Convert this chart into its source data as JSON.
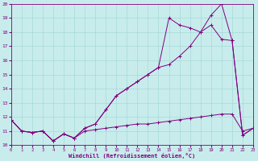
{
  "xlabel": "Windchill (Refroidissement éolien,°C)",
  "background_color": "#c8ecec",
  "line_color": "#800080",
  "grid_color": "#a8d8d8",
  "xmin": 0,
  "xmax": 23,
  "ymin": 10,
  "ymax": 20,
  "xticks": [
    0,
    1,
    2,
    3,
    4,
    5,
    6,
    7,
    8,
    9,
    10,
    11,
    12,
    13,
    14,
    15,
    16,
    17,
    18,
    19,
    20,
    21,
    22,
    23
  ],
  "yticks": [
    10,
    11,
    12,
    13,
    14,
    15,
    16,
    17,
    18,
    19,
    20
  ],
  "line1_x": [
    0,
    1,
    2,
    3,
    4,
    5,
    6,
    7,
    8,
    9,
    10,
    11,
    12,
    13,
    14,
    15,
    16,
    17,
    18,
    19,
    20,
    21,
    22,
    23
  ],
  "line1_y": [
    11.8,
    11.0,
    10.9,
    11.0,
    10.3,
    10.8,
    10.5,
    11.0,
    11.1,
    11.2,
    11.3,
    11.4,
    11.5,
    11.5,
    11.6,
    11.7,
    11.8,
    11.9,
    12.0,
    12.1,
    12.2,
    12.2,
    11.0,
    11.2
  ],
  "line2_x": [
    0,
    1,
    2,
    3,
    4,
    5,
    6,
    7,
    8,
    9,
    10,
    11,
    12,
    13,
    14,
    15,
    16,
    17,
    18,
    19,
    20,
    21,
    22,
    23
  ],
  "line2_y": [
    11.8,
    11.0,
    10.9,
    11.0,
    10.3,
    10.8,
    10.5,
    11.2,
    11.5,
    12.5,
    13.5,
    14.0,
    14.5,
    15.0,
    15.5,
    15.7,
    16.3,
    17.0,
    18.0,
    18.5,
    17.5,
    17.4,
    10.7,
    11.2
  ],
  "line3_x": [
    0,
    1,
    2,
    3,
    4,
    5,
    6,
    7,
    8,
    9,
    10,
    11,
    12,
    13,
    14,
    15,
    16,
    17,
    18,
    19,
    20,
    21,
    22,
    23
  ],
  "line3_y": [
    11.8,
    11.0,
    10.9,
    11.0,
    10.3,
    10.8,
    10.5,
    11.2,
    11.5,
    12.5,
    13.5,
    14.0,
    14.5,
    15.0,
    15.5,
    19.0,
    18.5,
    18.3,
    18.0,
    19.2,
    20.0,
    17.4,
    10.7,
    11.2
  ]
}
